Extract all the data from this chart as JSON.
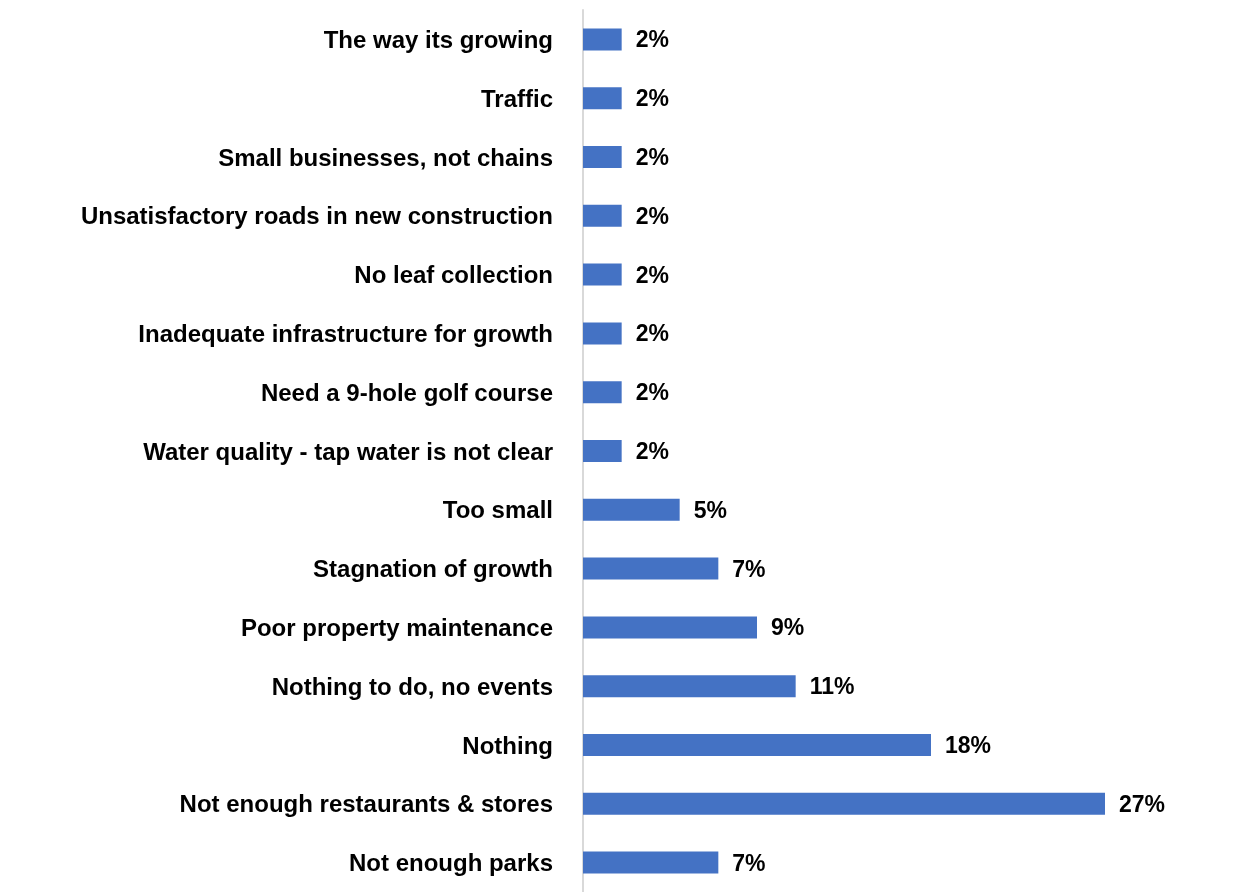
{
  "chart_data": {
    "type": "bar",
    "orientation": "horizontal",
    "categories": [
      "The way its growing",
      "Traffic",
      "Small businesses, not chains",
      "Unsatisfactory roads in new construction",
      "No leaf collection",
      "Inadequate infrastructure for growth",
      "Need a 9-hole golf course",
      "Water quality - tap water is not clear",
      "Too small",
      "Stagnation of growth",
      "Poor property maintenance",
      "Nothing to do, no events",
      "Nothing",
      "Not enough restaurants & stores",
      "Not enough parks"
    ],
    "values": [
      2,
      2,
      2,
      2,
      2,
      2,
      2,
      2,
      5,
      7,
      9,
      11,
      18,
      27,
      7
    ],
    "value_labels": [
      "2%",
      "2%",
      "2%",
      "2%",
      "2%",
      "2%",
      "2%",
      "2%",
      "5%",
      "7%",
      "9%",
      "11%",
      "18%",
      "27%",
      "7%"
    ],
    "color": "#4472c4"
  }
}
